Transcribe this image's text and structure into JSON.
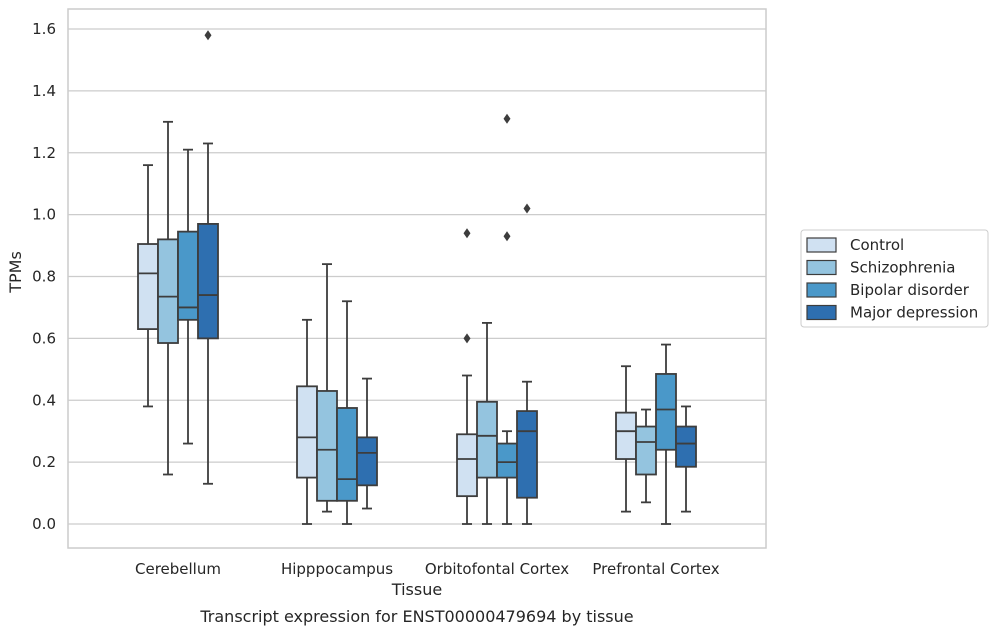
{
  "chart_data": {
    "type": "box",
    "xlabel": "Tissue",
    "ylabel": "TPMs",
    "caption": "Transcript expression for ENST00000479694 by tissue",
    "ylim": [
      -0.08,
      1.66
    ],
    "yticks": [
      0.0,
      0.2,
      0.4,
      0.6,
      0.8,
      1.0,
      1.2,
      1.4,
      1.6
    ],
    "ytick_labels": [
      "0.0",
      "0.2",
      "0.4",
      "0.6",
      "0.8",
      "1.0",
      "1.2",
      "1.4",
      "1.6"
    ],
    "categories": [
      "Cerebellum",
      "Hipppocampus",
      "Orbitofontal Cortex",
      "Prefrontal Cortex"
    ],
    "grid": "horizontal",
    "legend_position": "right",
    "series": [
      {
        "name": "Control",
        "color": "#d0e1f2",
        "boxes": [
          {
            "whislo": 0.38,
            "q1": 0.63,
            "med": 0.81,
            "q3": 0.905,
            "whishi": 1.16,
            "fliers": []
          },
          {
            "whislo": 0.0,
            "q1": 0.15,
            "med": 0.28,
            "q3": 0.445,
            "whishi": 0.66,
            "fliers": []
          },
          {
            "whislo": 0.0,
            "q1": 0.09,
            "med": 0.21,
            "q3": 0.29,
            "whishi": 0.48,
            "fliers": [
              0.6,
              0.94
            ]
          },
          {
            "whislo": 0.04,
            "q1": 0.21,
            "med": 0.3,
            "q3": 0.36,
            "whishi": 0.51,
            "fliers": []
          }
        ]
      },
      {
        "name": "Schizophrenia",
        "color": "#94c4df",
        "boxes": [
          {
            "whislo": 0.16,
            "q1": 0.585,
            "med": 0.735,
            "q3": 0.92,
            "whishi": 1.3,
            "fliers": []
          },
          {
            "whislo": 0.04,
            "q1": 0.075,
            "med": 0.24,
            "q3": 0.43,
            "whishi": 0.84,
            "fliers": []
          },
          {
            "whislo": 0.0,
            "q1": 0.15,
            "med": 0.285,
            "q3": 0.395,
            "whishi": 0.65,
            "fliers": []
          },
          {
            "whislo": 0.07,
            "q1": 0.16,
            "med": 0.265,
            "q3": 0.315,
            "whishi": 0.37,
            "fliers": []
          }
        ]
      },
      {
        "name": "Bipolar disorder",
        "color": "#4a98c9",
        "boxes": [
          {
            "whislo": 0.26,
            "q1": 0.66,
            "med": 0.7,
            "q3": 0.945,
            "whishi": 1.21,
            "fliers": []
          },
          {
            "whislo": 0.0,
            "q1": 0.075,
            "med": 0.145,
            "q3": 0.375,
            "whishi": 0.72,
            "fliers": []
          },
          {
            "whislo": 0.0,
            "q1": 0.15,
            "med": 0.2,
            "q3": 0.26,
            "whishi": 0.3,
            "fliers": [
              0.93,
              1.31
            ]
          },
          {
            "whislo": 0.0,
            "q1": 0.24,
            "med": 0.37,
            "q3": 0.485,
            "whishi": 0.58,
            "fliers": []
          }
        ]
      },
      {
        "name": "Major depression",
        "color": "#2e6fb0",
        "boxes": [
          {
            "whislo": 0.13,
            "q1": 0.6,
            "med": 0.74,
            "q3": 0.97,
            "whishi": 1.23,
            "fliers": [
              1.58
            ]
          },
          {
            "whislo": 0.05,
            "q1": 0.125,
            "med": 0.23,
            "q3": 0.28,
            "whishi": 0.47,
            "fliers": []
          },
          {
            "whislo": 0.0,
            "q1": 0.085,
            "med": 0.3,
            "q3": 0.365,
            "whishi": 0.46,
            "fliers": [
              1.02
            ]
          },
          {
            "whislo": 0.04,
            "q1": 0.185,
            "med": 0.26,
            "q3": 0.315,
            "whishi": 0.38,
            "fliers": []
          }
        ]
      }
    ]
  }
}
